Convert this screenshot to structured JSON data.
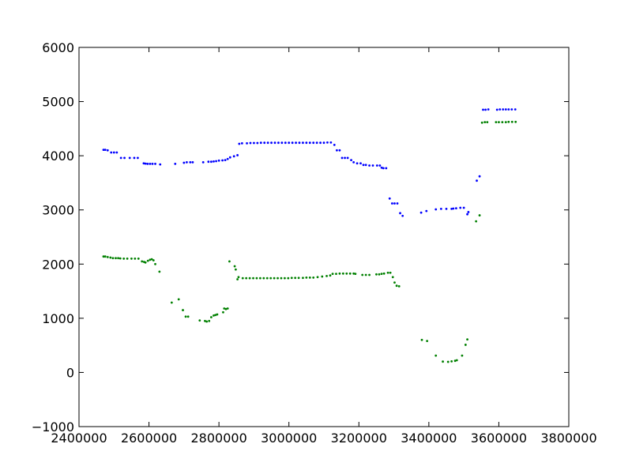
{
  "chart_data": {
    "type": "scatter",
    "title": "",
    "xlabel": "",
    "ylabel": "",
    "xlim": [
      2400000,
      3800000
    ],
    "ylim": [
      -1000,
      6000
    ],
    "grid": false,
    "legend": "none",
    "x_ticks": [
      2400000,
      2600000,
      2800000,
      3000000,
      3200000,
      3400000,
      3600000,
      3800000
    ],
    "x_tick_labels": [
      "2400000",
      "2600000",
      "2800000",
      "3000000",
      "3200000",
      "3400000",
      "3600000",
      "3800000"
    ],
    "y_ticks": [
      -1000,
      0,
      1000,
      2000,
      3000,
      4000,
      5000,
      6000
    ],
    "y_tick_labels": [
      "−1000",
      "0",
      "1000",
      "2000",
      "3000",
      "4000",
      "5000",
      "6000"
    ],
    "series": [
      {
        "color": "#0000ff",
        "points": [
          [
            2470000,
            4110
          ],
          [
            2475000,
            4110
          ],
          [
            2482000,
            4100
          ],
          [
            2492000,
            4060
          ],
          [
            2500000,
            4060
          ],
          [
            2508000,
            4060
          ],
          [
            2520000,
            3960
          ],
          [
            2530000,
            3960
          ],
          [
            2545000,
            3960
          ],
          [
            2558000,
            3960
          ],
          [
            2568000,
            3960
          ],
          [
            2585000,
            3860
          ],
          [
            2590000,
            3855
          ],
          [
            2596000,
            3850
          ],
          [
            2603000,
            3850
          ],
          [
            2610000,
            3850
          ],
          [
            2618000,
            3850
          ],
          [
            2632000,
            3840
          ],
          [
            2675000,
            3850
          ],
          [
            2700000,
            3870
          ],
          [
            2708000,
            3880
          ],
          [
            2718000,
            3880
          ],
          [
            2725000,
            3880
          ],
          [
            2755000,
            3880
          ],
          [
            2770000,
            3890
          ],
          [
            2778000,
            3890
          ],
          [
            2785000,
            3895
          ],
          [
            2792000,
            3900
          ],
          [
            2800000,
            3910
          ],
          [
            2810000,
            3915
          ],
          [
            2818000,
            3920
          ],
          [
            2825000,
            3940
          ],
          [
            2832000,
            3970
          ],
          [
            2843000,
            3990
          ],
          [
            2853000,
            4010
          ],
          [
            2858000,
            4220
          ],
          [
            2866000,
            4230
          ],
          [
            2880000,
            4230
          ],
          [
            2890000,
            4235
          ],
          [
            2900000,
            4235
          ],
          [
            2910000,
            4235
          ],
          [
            2920000,
            4240
          ],
          [
            2930000,
            4240
          ],
          [
            2940000,
            4240
          ],
          [
            2950000,
            4240
          ],
          [
            2960000,
            4240
          ],
          [
            2970000,
            4240
          ],
          [
            2980000,
            4240
          ],
          [
            2990000,
            4240
          ],
          [
            3000000,
            4240
          ],
          [
            3010000,
            4240
          ],
          [
            3020000,
            4240
          ],
          [
            3030000,
            4240
          ],
          [
            3040000,
            4240
          ],
          [
            3050000,
            4240
          ],
          [
            3060000,
            4240
          ],
          [
            3070000,
            4240
          ],
          [
            3080000,
            4240
          ],
          [
            3090000,
            4240
          ],
          [
            3100000,
            4240
          ],
          [
            3110000,
            4245
          ],
          [
            3120000,
            4245
          ],
          [
            3130000,
            4200
          ],
          [
            3137000,
            4100
          ],
          [
            3145000,
            4100
          ],
          [
            3152000,
            3960
          ],
          [
            3160000,
            3960
          ],
          [
            3168000,
            3960
          ],
          [
            3178000,
            3920
          ],
          [
            3185000,
            3880
          ],
          [
            3195000,
            3860
          ],
          [
            3205000,
            3860
          ],
          [
            3213000,
            3830
          ],
          [
            3220000,
            3830
          ],
          [
            3230000,
            3820
          ],
          [
            3240000,
            3820
          ],
          [
            3252000,
            3820
          ],
          [
            3260000,
            3820
          ],
          [
            3265000,
            3780
          ],
          [
            3270000,
            3770
          ],
          [
            3278000,
            3770
          ],
          [
            3288000,
            3210
          ],
          [
            3295000,
            3120
          ],
          [
            3302000,
            3120
          ],
          [
            3310000,
            3120
          ],
          [
            3318000,
            2940
          ],
          [
            3325000,
            2890
          ],
          [
            3378000,
            2950
          ],
          [
            3393000,
            2980
          ],
          [
            3420000,
            3010
          ],
          [
            3435000,
            3020
          ],
          [
            3450000,
            3020
          ],
          [
            3465000,
            3020
          ],
          [
            3470000,
            3025
          ],
          [
            3478000,
            3030
          ],
          [
            3490000,
            3040
          ],
          [
            3500000,
            3040
          ],
          [
            3510000,
            2920
          ],
          [
            3513000,
            2960
          ],
          [
            3537000,
            3540
          ],
          [
            3545000,
            3620
          ],
          [
            3555000,
            4850
          ],
          [
            3562000,
            4850
          ],
          [
            3570000,
            4855
          ],
          [
            3595000,
            4850
          ],
          [
            3603000,
            4855
          ],
          [
            3612000,
            4855
          ],
          [
            3620000,
            4855
          ],
          [
            3628000,
            4855
          ],
          [
            3637000,
            4855
          ],
          [
            3647000,
            4855
          ]
        ]
      },
      {
        "color": "#008000",
        "points": [
          [
            2470000,
            2140
          ],
          [
            2475000,
            2140
          ],
          [
            2482000,
            2130
          ],
          [
            2490000,
            2120
          ],
          [
            2497000,
            2110
          ],
          [
            2505000,
            2110
          ],
          [
            2512000,
            2110
          ],
          [
            2518000,
            2105
          ],
          [
            2528000,
            2100
          ],
          [
            2538000,
            2100
          ],
          [
            2550000,
            2100
          ],
          [
            2560000,
            2100
          ],
          [
            2570000,
            2100
          ],
          [
            2580000,
            2050
          ],
          [
            2586000,
            2040
          ],
          [
            2590000,
            2030
          ],
          [
            2597000,
            2060
          ],
          [
            2603000,
            2080
          ],
          [
            2608000,
            2090
          ],
          [
            2613000,
            2070
          ],
          [
            2618000,
            2000
          ],
          [
            2630000,
            1860
          ],
          [
            2665000,
            1290
          ],
          [
            2685000,
            1350
          ],
          [
            2697000,
            1150
          ],
          [
            2705000,
            1030
          ],
          [
            2712000,
            1030
          ],
          [
            2745000,
            960
          ],
          [
            2760000,
            950
          ],
          [
            2765000,
            940
          ],
          [
            2772000,
            950
          ],
          [
            2778000,
            1020
          ],
          [
            2785000,
            1050
          ],
          [
            2790000,
            1060
          ],
          [
            2795000,
            1070
          ],
          [
            2812000,
            1110
          ],
          [
            2815000,
            1180
          ],
          [
            2820000,
            1170
          ],
          [
            2825000,
            1180
          ],
          [
            2830000,
            2050
          ],
          [
            2845000,
            1960
          ],
          [
            2848000,
            1900
          ],
          [
            2853000,
            1720
          ],
          [
            2856000,
            1760
          ],
          [
            2868000,
            1740
          ],
          [
            2878000,
            1740
          ],
          [
            2888000,
            1740
          ],
          [
            2898000,
            1740
          ],
          [
            2908000,
            1740
          ],
          [
            2918000,
            1740
          ],
          [
            2928000,
            1740
          ],
          [
            2938000,
            1740
          ],
          [
            2948000,
            1740
          ],
          [
            2958000,
            1740
          ],
          [
            2968000,
            1740
          ],
          [
            2978000,
            1740
          ],
          [
            2988000,
            1740
          ],
          [
            2998000,
            1740
          ],
          [
            3008000,
            1745
          ],
          [
            3018000,
            1745
          ],
          [
            3028000,
            1745
          ],
          [
            3040000,
            1745
          ],
          [
            3050000,
            1750
          ],
          [
            3060000,
            1750
          ],
          [
            3070000,
            1750
          ],
          [
            3082000,
            1760
          ],
          [
            3095000,
            1770
          ],
          [
            3108000,
            1780
          ],
          [
            3118000,
            1790
          ],
          [
            3125000,
            1820
          ],
          [
            3135000,
            1820
          ],
          [
            3145000,
            1825
          ],
          [
            3155000,
            1825
          ],
          [
            3165000,
            1825
          ],
          [
            3175000,
            1825
          ],
          [
            3185000,
            1825
          ],
          [
            3190000,
            1820
          ],
          [
            3210000,
            1800
          ],
          [
            3220000,
            1800
          ],
          [
            3230000,
            1800
          ],
          [
            3250000,
            1810
          ],
          [
            3258000,
            1810
          ],
          [
            3265000,
            1820
          ],
          [
            3272000,
            1825
          ],
          [
            3283000,
            1840
          ],
          [
            3290000,
            1840
          ],
          [
            3297000,
            1760
          ],
          [
            3302000,
            1660
          ],
          [
            3308000,
            1600
          ],
          [
            3315000,
            1590
          ],
          [
            3380000,
            600
          ],
          [
            3395000,
            580
          ],
          [
            3420000,
            310
          ],
          [
            3440000,
            200
          ],
          [
            3455000,
            195
          ],
          [
            3465000,
            205
          ],
          [
            3475000,
            215
          ],
          [
            3480000,
            225
          ],
          [
            3495000,
            310
          ],
          [
            3505000,
            510
          ],
          [
            3510000,
            610
          ],
          [
            3535000,
            2790
          ],
          [
            3545000,
            2900
          ],
          [
            3552000,
            4610
          ],
          [
            3560000,
            4620
          ],
          [
            3567000,
            4620
          ],
          [
            3592000,
            4620
          ],
          [
            3600000,
            4620
          ],
          [
            3610000,
            4620
          ],
          [
            3620000,
            4620
          ],
          [
            3628000,
            4625
          ],
          [
            3638000,
            4625
          ],
          [
            3648000,
            4625
          ]
        ]
      }
    ]
  }
}
